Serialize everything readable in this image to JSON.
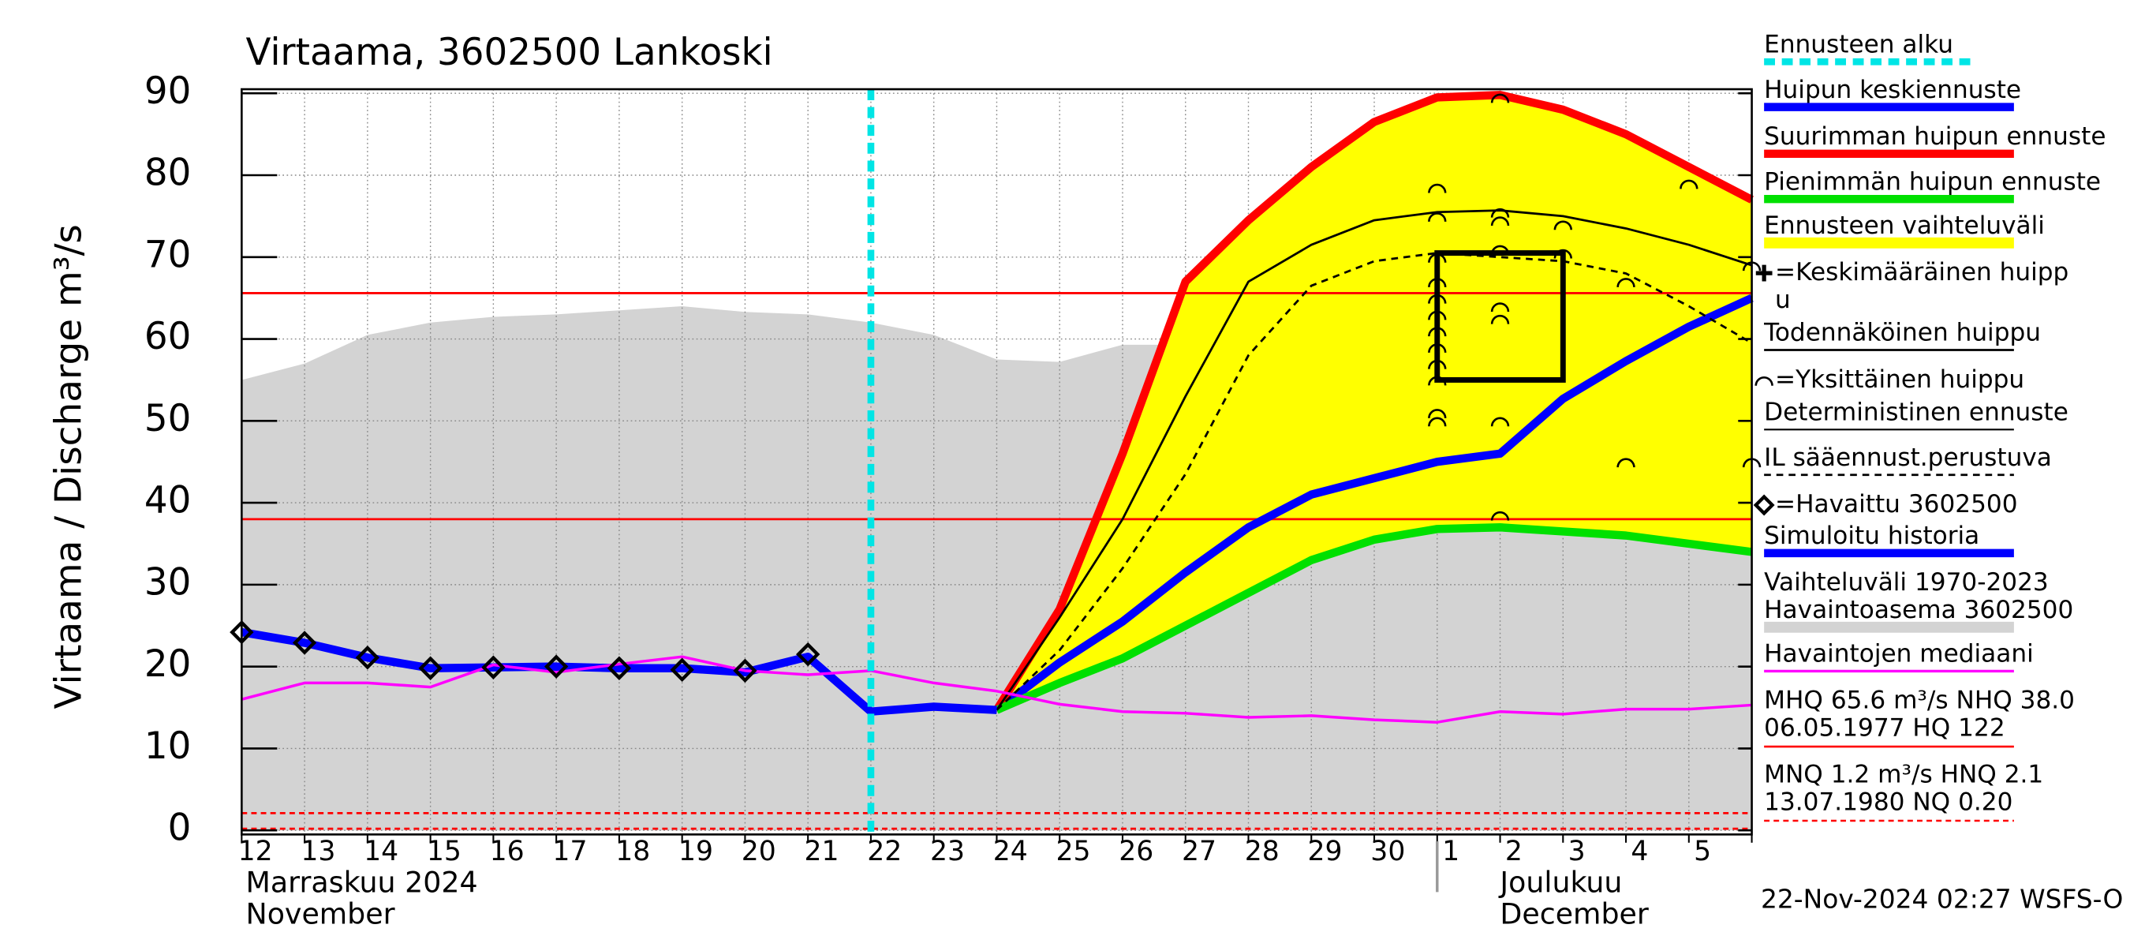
{
  "chart_data": {
    "type": "line",
    "title": "Virtaama, 3602500 Lankoski",
    "y_label": "Virtaama / Discharge    m³/s",
    "months": [
      [
        "Marraskuu 2024",
        "November"
      ],
      [
        "Joulukuu",
        "December"
      ]
    ],
    "month_start": 19,
    "footer": "22-Nov-2024 02:27 WSFS-O",
    "categories": [
      "12",
      "13",
      "14",
      "15",
      "16",
      "17",
      "18",
      "19",
      "20",
      "21",
      "22",
      "23",
      "24",
      "25",
      "26",
      "27",
      "28",
      "29",
      "30",
      "1",
      "2",
      "3",
      "4",
      "5",
      null
    ],
    "ylim": [
      -0.5,
      90.5
    ],
    "yticks": [
      0,
      10,
      20,
      30,
      40,
      50,
      60,
      70,
      80,
      90
    ],
    "grid": true,
    "series": [
      {
        "name": "Ennusteen alku",
        "kind": "vline",
        "color": "#00e5e5",
        "x": 10
      },
      {
        "name": "Huipun keskiennuste",
        "kind": "line",
        "style": "thick",
        "color": "#0000ff",
        "values": [
          null,
          null,
          null,
          null,
          null,
          null,
          null,
          null,
          null,
          null,
          null,
          null,
          14.7,
          20.5,
          25.5,
          31.5,
          37,
          41,
          43,
          45,
          46,
          52.7,
          57.3,
          61.5,
          65
        ]
      },
      {
        "name": "Suurimman huipun ennuste",
        "kind": "line",
        "style": "thick",
        "color": "#ff0000",
        "values": [
          null,
          null,
          null,
          null,
          null,
          null,
          null,
          null,
          null,
          null,
          null,
          null,
          14.7,
          27,
          46,
          67,
          74.5,
          81,
          86.5,
          89.5,
          89.8,
          88,
          85,
          81,
          77
        ]
      },
      {
        "name": "Pienimmän huipun ennuste",
        "kind": "line",
        "style": "thick",
        "color": "#00e000",
        "values": [
          null,
          null,
          null,
          null,
          null,
          null,
          null,
          null,
          null,
          null,
          null,
          null,
          14.7,
          18,
          21,
          25,
          29,
          33,
          35.5,
          36.8,
          37,
          36.5,
          36,
          35,
          34
        ]
      },
      {
        "name": "Ennusteen vaihteluväli",
        "kind": "band",
        "color": "#ffff00"
      },
      {
        "name": "=Keskimääräinen huipp",
        "name2": "u",
        "kind": "box",
        "color": "#000000",
        "box": {
          "x": [
            19,
            21
          ],
          "y": [
            55,
            70.5
          ]
        }
      },
      {
        "name": "Todennäköinen huippu",
        "kind": "line",
        "style": "thin",
        "color": "#000000",
        "values": [
          null,
          null,
          null,
          null,
          null,
          null,
          null,
          null,
          null,
          null,
          null,
          null,
          14.7,
          26,
          38,
          53,
          67,
          71.5,
          74.5,
          75.5,
          75.7,
          75,
          73.5,
          71.5,
          69
        ]
      },
      {
        "name": "=Yksittäinen huippu",
        "kind": "points",
        "color": "#000000",
        "x": [
          19,
          19,
          19,
          19,
          19,
          19,
          19,
          19,
          19,
          19,
          19,
          19,
          20,
          20,
          20,
          20,
          20,
          20,
          20,
          20,
          21,
          21,
          22,
          22,
          23,
          24,
          24
        ],
        "values": [
          78.5,
          75,
          70,
          67,
          65,
          63,
          61,
          59,
          57,
          55,
          51,
          50,
          89.5,
          75.5,
          74.5,
          71,
          64,
          62.5,
          50,
          38.5,
          74,
          70.5,
          67,
          45,
          79,
          69,
          45
        ]
      },
      {
        "name": "Deterministinen ennuste",
        "kind": "legend",
        "color": "#000000"
      },
      {
        "name": "IL sääennust.perustuva",
        "kind": "line",
        "style": "dashed",
        "color": "#000000",
        "values": [
          null,
          null,
          null,
          null,
          null,
          null,
          null,
          null,
          null,
          null,
          null,
          null,
          14.7,
          22,
          32,
          43.5,
          58,
          66.5,
          69.5,
          70.5,
          70,
          69.5,
          68,
          64,
          59.5
        ]
      },
      {
        "name": "=Havaittu 3602500",
        "kind": "markers",
        "color": "#000000",
        "values": [
          24.2,
          22.9,
          21.1,
          19.8,
          19.9,
          20,
          19.8,
          19.6,
          19.5,
          21.5,
          null,
          null,
          null,
          null,
          null,
          null,
          null,
          null,
          null,
          null,
          null,
          null,
          null,
          null,
          null
        ]
      },
      {
        "name": "Simuloitu historia",
        "kind": "line",
        "style": "thick",
        "color": "#0000ff",
        "values": [
          24.2,
          22.9,
          21.1,
          19.8,
          19.9,
          20,
          19.8,
          19.8,
          19.3,
          21.2,
          14.5,
          15.1,
          14.7,
          null,
          null,
          null,
          null,
          null,
          null,
          null,
          null,
          null,
          null,
          null,
          null
        ]
      },
      {
        "name": "Vaihteluväli 1970-2023",
        "name2": " Havaintoasema 3602500",
        "kind": "area",
        "color": "#d3d3d3",
        "values": [
          55,
          57,
          60.5,
          62,
          62.7,
          63,
          63.5,
          64,
          63.3,
          63,
          62,
          60.5,
          57.5,
          57.2,
          59.3,
          59.3,
          59.5,
          61,
          62,
          63,
          62.5,
          64.5,
          65,
          62,
          59
        ]
      },
      {
        "name": "Havaintojen mediaani",
        "kind": "line",
        "style": "median",
        "color": "#ff00ff",
        "values": [
          16,
          18,
          18,
          17.5,
          20.2,
          19.3,
          20.3,
          21.2,
          19.5,
          19,
          19.5,
          18,
          17,
          15.4,
          14.5,
          14.3,
          13.8,
          14,
          13.5,
          13.2,
          14.5,
          14.2,
          14.8,
          14.8,
          15.3
        ]
      }
    ],
    "reference_lines": [
      {
        "labels": [
          "MHQ 65.6 m³/s NHQ 38.0",
          "06.05.1977 HQ  122"
        ],
        "color": "#ff0000",
        "dashed": false,
        "values": [
          65.6,
          38.0
        ]
      },
      {
        "labels": [
          "MNQ  1.2 m³/s HNQ  2.1",
          "13.07.1980 NQ 0.20"
        ],
        "color": "#ff0000",
        "dashed": true,
        "values": [
          2.1,
          0.2
        ]
      }
    ]
  }
}
